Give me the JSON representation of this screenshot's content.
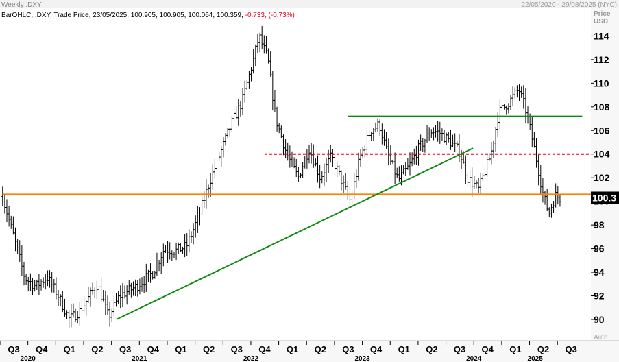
{
  "header": {
    "top_left": "Weekly .DXY",
    "top_right": "22/05/2020 - 29/08/2025 (NYC)",
    "legend_prefix": "BarOHLC, .DXY, Trade Price, 23/05/2025, 100.905, 100.905, 100.064, 100.359, ",
    "legend_change": "-0.733, (-0.73%)"
  },
  "axis_labels": {
    "price": "Price",
    "currency": "USD",
    "auto": "Auto"
  },
  "chart_data": {
    "type": "ohlc",
    "yticks": [
      90,
      92,
      94,
      96,
      98,
      100,
      102,
      104,
      106,
      108,
      110,
      112,
      114
    ],
    "ylim": [
      88.2,
      115.3
    ],
    "last_price_label": "100.3",
    "xlim": [
      2020.5,
      2025.8
    ],
    "quarter_ticks": [
      {
        "label": "Q3",
        "t": 2020.5
      },
      {
        "label": "Q4",
        "t": 2020.75
      },
      {
        "label": "Q1",
        "t": 2021.0
      },
      {
        "label": "Q2",
        "t": 2021.25
      },
      {
        "label": "Q3",
        "t": 2021.5
      },
      {
        "label": "Q4",
        "t": 2021.75
      },
      {
        "label": "Q1",
        "t": 2022.0
      },
      {
        "label": "Q2",
        "t": 2022.25
      },
      {
        "label": "Q3",
        "t": 2022.5
      },
      {
        "label": "Q4",
        "t": 2022.75
      },
      {
        "label": "Q1",
        "t": 2023.0
      },
      {
        "label": "Q2",
        "t": 2023.25
      },
      {
        "label": "Q3",
        "t": 2023.5
      },
      {
        "label": "Q4",
        "t": 2023.75
      },
      {
        "label": "Q1",
        "t": 2024.0
      },
      {
        "label": "Q2",
        "t": 2024.25
      },
      {
        "label": "Q3",
        "t": 2024.5
      },
      {
        "label": "Q4",
        "t": 2024.75
      },
      {
        "label": "Q1",
        "t": 2025.0
      },
      {
        "label": "Q2",
        "t": 2025.25
      },
      {
        "label": "Q3",
        "t": 2025.5
      }
    ],
    "year_labels": [
      {
        "label": "2020",
        "t": 2020.75
      },
      {
        "label": "2021",
        "t": 2021.75
      },
      {
        "label": "2022",
        "t": 2022.75
      },
      {
        "label": "2023",
        "t": 2023.75
      },
      {
        "label": "2024",
        "t": 2024.75
      },
      {
        "label": "2025",
        "t": 2025.3
      }
    ],
    "price_path": [
      [
        2020.4,
        100.4
      ],
      [
        2020.5,
        97.0
      ],
      [
        2020.6,
        93.5
      ],
      [
        2020.7,
        92.8
      ],
      [
        2020.8,
        93.6
      ],
      [
        2020.9,
        92.0
      ],
      [
        2021.0,
        90.0
      ],
      [
        2021.1,
        90.8
      ],
      [
        2021.25,
        93.0
      ],
      [
        2021.35,
        90.2
      ],
      [
        2021.45,
        92.0
      ],
      [
        2021.6,
        92.8
      ],
      [
        2021.75,
        94.0
      ],
      [
        2021.85,
        96.0
      ],
      [
        2021.95,
        95.8
      ],
      [
        2022.05,
        96.2
      ],
      [
        2022.15,
        98.5
      ],
      [
        2022.25,
        101.5
      ],
      [
        2022.35,
        104.0
      ],
      [
        2022.45,
        106.5
      ],
      [
        2022.55,
        108.5
      ],
      [
        2022.65,
        112.0
      ],
      [
        2022.7,
        114.0
      ],
      [
        2022.78,
        112.0
      ],
      [
        2022.85,
        107.0
      ],
      [
        2022.95,
        104.0
      ],
      [
        2023.05,
        102.0
      ],
      [
        2023.15,
        104.5
      ],
      [
        2023.25,
        102.0
      ],
      [
        2023.35,
        103.8
      ],
      [
        2023.45,
        101.5
      ],
      [
        2023.52,
        100.0
      ],
      [
        2023.6,
        103.5
      ],
      [
        2023.7,
        106.0
      ],
      [
        2023.78,
        106.5
      ],
      [
        2023.85,
        104.0
      ],
      [
        2023.95,
        101.8
      ],
      [
        2024.05,
        103.0
      ],
      [
        2024.12,
        104.3
      ],
      [
        2024.25,
        106.0
      ],
      [
        2024.32,
        105.8
      ],
      [
        2024.42,
        105.0
      ],
      [
        2024.5,
        104.2
      ],
      [
        2024.57,
        102.0
      ],
      [
        2024.67,
        101.0
      ],
      [
        2024.78,
        104.0
      ],
      [
        2024.85,
        107.5
      ],
      [
        2024.95,
        108.5
      ],
      [
        2025.03,
        109.5
      ],
      [
        2025.1,
        107.5
      ],
      [
        2025.18,
        104.0
      ],
      [
        2025.25,
        100.5
      ],
      [
        2025.3,
        99.0
      ],
      [
        2025.36,
        100.5
      ],
      [
        2025.4,
        100.3
      ]
    ],
    "lines": [
      {
        "name": "orange-support",
        "kind": "horizontal",
        "y": 100.6,
        "t1": 2020.4,
        "t2": 2025.8,
        "color": "#ff8000",
        "dashed": false
      },
      {
        "name": "red-dashed-level",
        "kind": "horizontal",
        "y": 104.0,
        "t1": 2022.75,
        "t2": 2025.8,
        "color": "#e8001c",
        "dashed": true
      },
      {
        "name": "green-resistance",
        "kind": "horizontal",
        "y": 107.2,
        "t1": 2023.5,
        "t2": 2025.6,
        "color": "#118a11",
        "dashed": false
      },
      {
        "name": "green-trendline",
        "kind": "segment",
        "t1": 2021.42,
        "y1": 90.0,
        "t2": 2024.62,
        "y2": 104.5,
        "color": "#118a11",
        "dashed": false
      }
    ],
    "colors": {
      "bars": "#000000",
      "price_label_bg": "#000000",
      "axis_bg": "#f7f7f7",
      "header_bg": "#f2f2f2",
      "header_text": "#888888",
      "change": "#e8001c"
    }
  }
}
